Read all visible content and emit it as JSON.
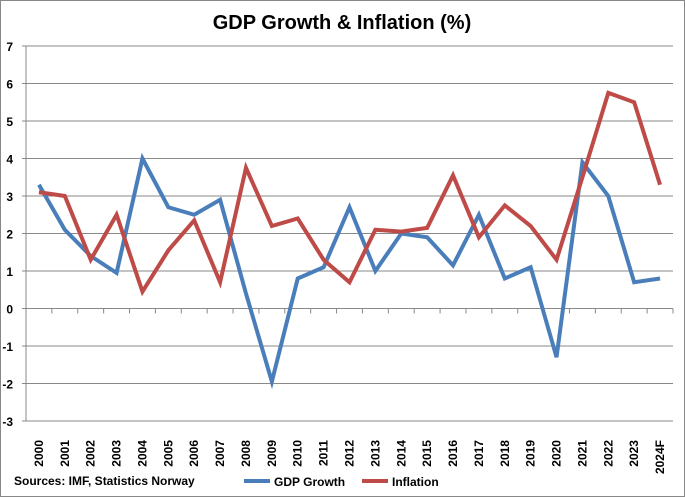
{
  "chart_data": {
    "type": "line",
    "title": "GDP Growth & Inflation (%)",
    "categories": [
      "2000",
      "2001",
      "2002",
      "2003",
      "2004",
      "2005",
      "2006",
      "2007",
      "2008",
      "2009",
      "2010",
      "2011",
      "2012",
      "2013",
      "2014",
      "2015",
      "2016",
      "2017",
      "2018",
      "2019",
      "2020",
      "2021",
      "2022",
      "2023",
      "2024F"
    ],
    "series": [
      {
        "name": "GDP Growth",
        "color": "#4a7ebb",
        "values": [
          3.3,
          2.1,
          1.4,
          0.95,
          4.0,
          2.7,
          2.5,
          2.9,
          0.4,
          -1.95,
          0.8,
          1.1,
          2.7,
          1.0,
          2.0,
          1.9,
          1.15,
          2.5,
          0.8,
          1.1,
          -1.3,
          3.9,
          3.0,
          0.7,
          0.8
        ]
      },
      {
        "name": "Inflation",
        "color": "#be4b48",
        "values": [
          3.1,
          3.0,
          1.3,
          2.5,
          0.45,
          1.55,
          2.35,
          0.7,
          3.75,
          2.2,
          2.4,
          1.3,
          0.7,
          2.1,
          2.05,
          2.15,
          3.55,
          1.9,
          2.75,
          2.2,
          1.3,
          3.5,
          5.75,
          5.5,
          3.3
        ]
      }
    ],
    "ylim": [
      -3,
      7
    ],
    "yticks": [
      "-3",
      "-2",
      "-1",
      "0",
      "1",
      "2",
      "3",
      "4",
      "5",
      "6",
      "7"
    ],
    "grid": true,
    "legend": "bottom",
    "source": "Sources: IMF, Statistics Norway"
  }
}
